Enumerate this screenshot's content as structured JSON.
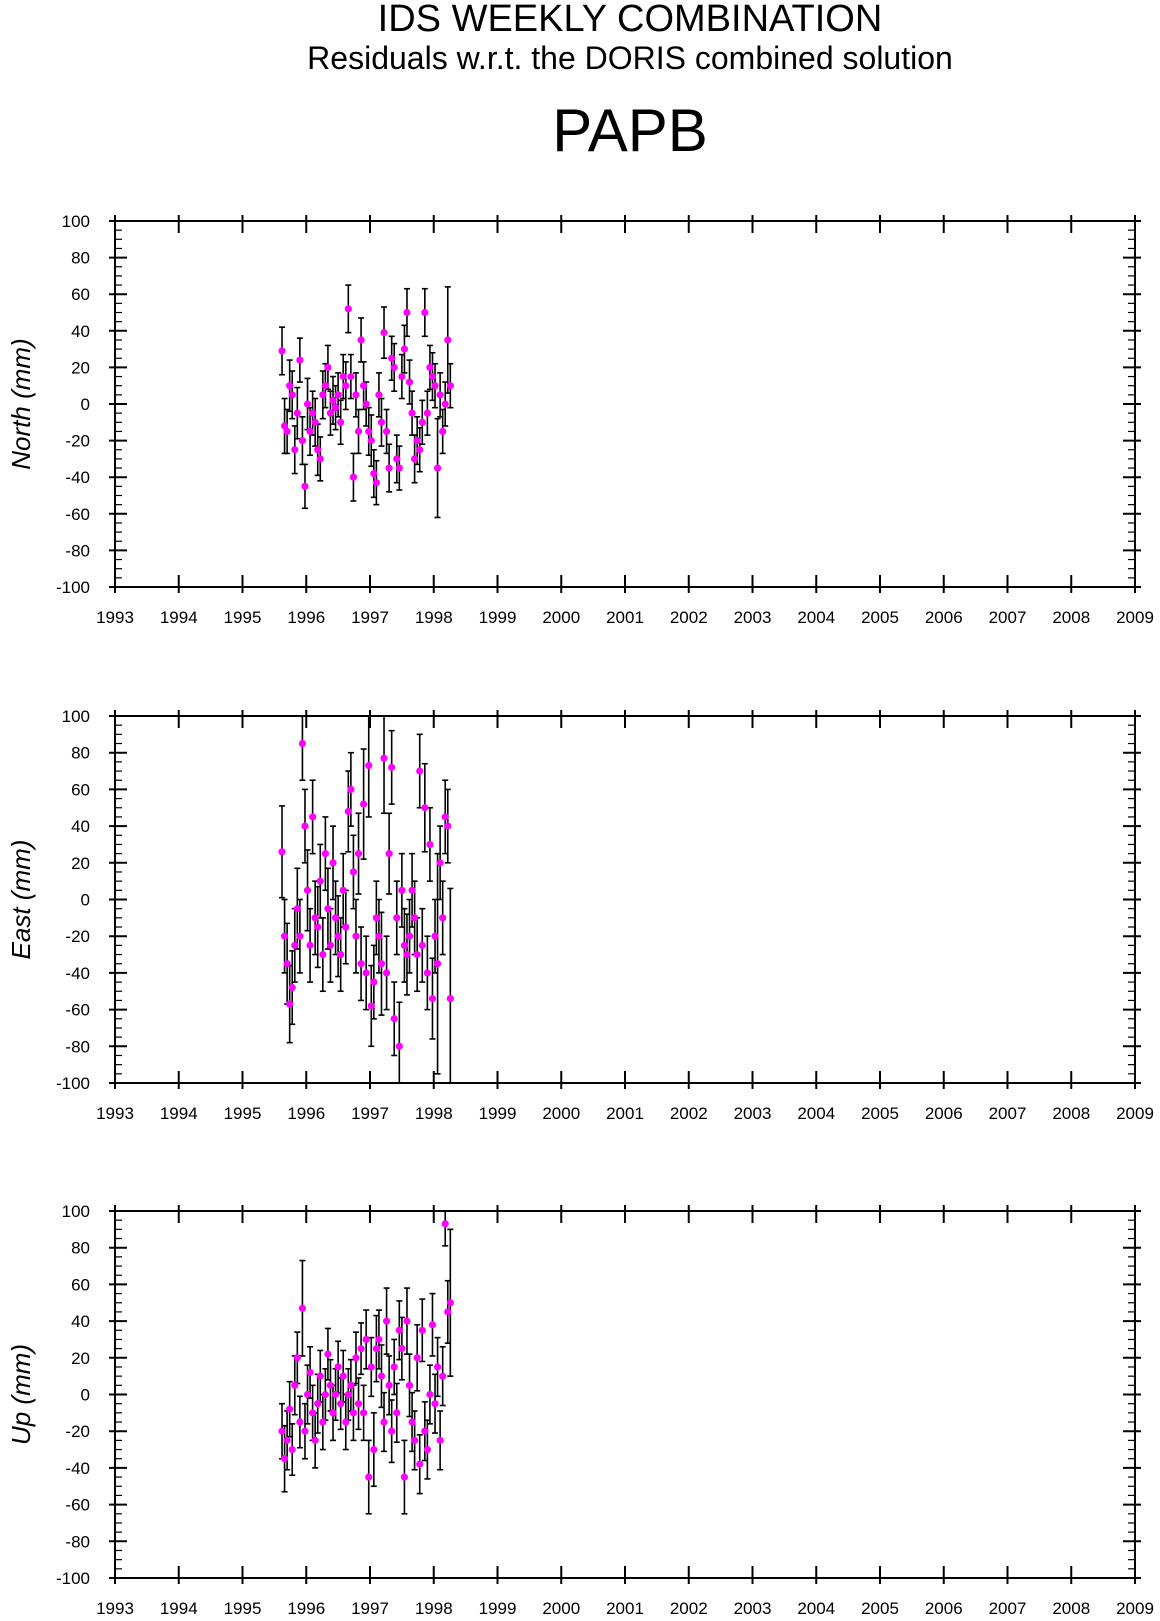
{
  "header": {
    "title": "IDS WEEKLY COMBINATION",
    "subtitle": "Residuals w.r.t. the DORIS combined solution",
    "station": "PAPB"
  },
  "colors": {
    "marker": "#ff00ff",
    "errorbar": "#000000",
    "axis": "#000000"
  },
  "chart_data": [
    {
      "type": "scatter",
      "ylabel": "North (mm)",
      "xlim": [
        1993,
        2009
      ],
      "ylim": [
        -100,
        100
      ],
      "x_ticks": [
        "1993",
        "1994",
        "1995",
        "1996",
        "1997",
        "1998",
        "1999",
        "2000",
        "2001",
        "2002",
        "2003",
        "2004",
        "2005",
        "2006",
        "2007",
        "2008",
        "2009"
      ],
      "y_ticks": [
        "100",
        "80",
        "60",
        "40",
        "20",
        "0",
        "-20",
        "-40",
        "-60",
        "-80",
        "-100"
      ],
      "series": [
        {
          "x": [
            1995.62,
            1995.66,
            1995.7,
            1995.74,
            1995.78,
            1995.82,
            1995.86,
            1995.9,
            1995.94,
            1995.98,
            1996.02,
            1996.06,
            1996.1,
            1996.14,
            1996.18,
            1996.22,
            1996.26,
            1996.3,
            1996.34,
            1996.38,
            1996.42,
            1996.46,
            1996.5,
            1996.54,
            1996.58,
            1996.62,
            1996.66,
            1996.7,
            1996.74,
            1996.78,
            1996.82,
            1996.86,
            1996.9,
            1996.94,
            1996.98,
            1997.02,
            1997.06,
            1997.1,
            1997.14,
            1997.18,
            1997.22,
            1997.26,
            1997.3,
            1997.34,
            1997.38,
            1997.42,
            1997.46,
            1997.5,
            1997.54,
            1997.58,
            1997.62,
            1997.66,
            1997.7,
            1997.74,
            1997.78,
            1997.82,
            1997.86,
            1997.9,
            1997.94,
            1997.98,
            1998.02,
            1998.06,
            1998.1,
            1998.14,
            1998.18,
            1998.22,
            1998.26
          ],
          "y": [
            29,
            -12,
            -15,
            10,
            5,
            -25,
            -5,
            24,
            -20,
            -45,
            0,
            -15,
            -5,
            -10,
            -25,
            -30,
            5,
            10,
            20,
            -5,
            2,
            -2,
            5,
            -10,
            15,
            10,
            52,
            15,
            -40,
            5,
            -15,
            35,
            10,
            0,
            -15,
            -20,
            -38,
            -43,
            5,
            -10,
            39,
            -15,
            -35,
            25,
            20,
            -30,
            -35,
            15,
            30,
            50,
            12,
            -5,
            -30,
            -20,
            -25,
            -10,
            50,
            -5,
            20,
            15,
            10,
            -35,
            5,
            -15,
            0,
            35,
            10
          ],
          "err": [
            13,
            15,
            12,
            14,
            13,
            13,
            14,
            12,
            13,
            12,
            14,
            13,
            12,
            13,
            14,
            12,
            13,
            12,
            12,
            12,
            13,
            12,
            12,
            12,
            12,
            13,
            13,
            12,
            13,
            12,
            12,
            12,
            13,
            12,
            13,
            14,
            13,
            12,
            12,
            13,
            14,
            12,
            13,
            12,
            13,
            13,
            12,
            12,
            13,
            13,
            12,
            12,
            13,
            13,
            12,
            12,
            13,
            12,
            12,
            13,
            12,
            27,
            12,
            12,
            12,
            29,
            12
          ]
        }
      ]
    },
    {
      "type": "scatter",
      "ylabel": "East (mm)",
      "xlim": [
        1993,
        2009
      ],
      "ylim": [
        -100,
        100
      ],
      "x_ticks": [
        "1993",
        "1994",
        "1995",
        "1996",
        "1997",
        "1998",
        "1999",
        "2000",
        "2001",
        "2002",
        "2003",
        "2004",
        "2005",
        "2006",
        "2007",
        "2008",
        "2009"
      ],
      "y_ticks": [
        "100",
        "80",
        "60",
        "40",
        "20",
        "0",
        "-20",
        "-40",
        "-60",
        "-80",
        "-100"
      ],
      "series": [
        {
          "x": [
            1995.62,
            1995.66,
            1995.7,
            1995.74,
            1995.78,
            1995.82,
            1995.86,
            1995.9,
            1995.94,
            1995.98,
            1996.02,
            1996.06,
            1996.1,
            1996.14,
            1996.18,
            1996.22,
            1996.26,
            1996.3,
            1996.34,
            1996.38,
            1996.42,
            1996.46,
            1996.5,
            1996.54,
            1996.58,
            1996.62,
            1996.66,
            1996.7,
            1996.74,
            1996.78,
            1996.82,
            1996.86,
            1996.9,
            1996.94,
            1996.98,
            1997.02,
            1997.06,
            1997.1,
            1997.14,
            1997.18,
            1997.22,
            1997.26,
            1997.3,
            1997.34,
            1997.38,
            1997.42,
            1997.46,
            1997.5,
            1997.54,
            1997.58,
            1997.62,
            1997.66,
            1997.7,
            1997.74,
            1997.78,
            1997.82,
            1997.86,
            1997.9,
            1997.94,
            1997.98,
            1998.02,
            1998.06,
            1998.1,
            1998.14,
            1998.18,
            1998.22,
            1998.26
          ],
          "y": [
            26,
            -20,
            -35,
            -57,
            -48,
            -25,
            -5,
            -20,
            85,
            40,
            5,
            -25,
            45,
            -10,
            -15,
            10,
            -30,
            25,
            -5,
            -25,
            20,
            -10,
            -20,
            -30,
            5,
            -15,
            48,
            60,
            15,
            -20,
            25,
            -35,
            52,
            -40,
            73,
            -58,
            -45,
            -10,
            -20,
            -35,
            77,
            -40,
            25,
            72,
            -65,
            -10,
            -80,
            5,
            -25,
            -30,
            -20,
            5,
            -10,
            -30,
            70,
            -25,
            50,
            -40,
            30,
            -54,
            -20,
            -35,
            20,
            -10,
            45,
            40,
            -54
          ],
          "err": [
            25,
            20,
            22,
            21,
            20,
            20,
            22,
            20,
            20,
            20,
            22,
            20,
            20,
            20,
            22,
            20,
            20,
            20,
            22,
            20,
            20,
            20,
            22,
            20,
            20,
            20,
            22,
            20,
            20,
            20,
            22,
            20,
            30,
            20,
            28,
            22,
            20,
            20,
            20,
            28,
            30,
            20,
            22,
            20,
            20,
            20,
            24,
            20,
            20,
            22,
            20,
            20,
            20,
            20,
            20,
            20,
            24,
            20,
            20,
            22,
            20,
            60,
            20,
            20,
            20,
            20,
            60
          ]
        }
      ]
    },
    {
      "type": "scatter",
      "ylabel": "Up (mm)",
      "xlim": [
        1993,
        2009
      ],
      "ylim": [
        -100,
        100
      ],
      "x_ticks": [
        "1993",
        "1994",
        "1995",
        "1996",
        "1997",
        "1998",
        "1999",
        "2000",
        "2001",
        "2002",
        "2003",
        "2004",
        "2005",
        "2006",
        "2007",
        "2008",
        "2009"
      ],
      "y_ticks": [
        "100",
        "80",
        "60",
        "40",
        "20",
        "0",
        "-20",
        "-40",
        "-60",
        "-80",
        "-100"
      ],
      "series": [
        {
          "x": [
            1995.62,
            1995.66,
            1995.7,
            1995.74,
            1995.78,
            1995.82,
            1995.86,
            1995.9,
            1995.94,
            1995.98,
            1996.02,
            1996.06,
            1996.1,
            1996.14,
            1996.18,
            1996.22,
            1996.26,
            1996.3,
            1996.34,
            1996.38,
            1996.42,
            1996.46,
            1996.5,
            1996.54,
            1996.58,
            1996.62,
            1996.66,
            1996.7,
            1996.74,
            1996.78,
            1996.82,
            1996.86,
            1996.9,
            1996.94,
            1996.98,
            1997.02,
            1997.06,
            1997.1,
            1997.14,
            1997.18,
            1997.22,
            1997.26,
            1997.3,
            1997.34,
            1997.38,
            1997.42,
            1997.46,
            1997.5,
            1997.54,
            1997.58,
            1997.62,
            1997.66,
            1997.7,
            1997.74,
            1997.78,
            1997.82,
            1997.86,
            1997.9,
            1997.94,
            1997.98,
            1998.02,
            1998.06,
            1998.1,
            1998.14,
            1998.18,
            1998.22,
            1998.26
          ],
          "y": [
            -20,
            -35,
            -25,
            -8,
            -30,
            5,
            20,
            -15,
            47,
            -20,
            0,
            12,
            -10,
            -25,
            -5,
            10,
            -15,
            0,
            22,
            5,
            -10,
            0,
            15,
            -5,
            10,
            -15,
            0,
            5,
            -10,
            20,
            -5,
            25,
            -10,
            30,
            -45,
            15,
            -30,
            25,
            30,
            10,
            -15,
            40,
            5,
            -20,
            15,
            -10,
            35,
            25,
            -45,
            40,
            5,
            -15,
            -25,
            20,
            -38,
            35,
            -20,
            -30,
            0,
            38,
            -5,
            15,
            -25,
            10,
            93,
            45,
            50
          ],
          "err": [
            15,
            18,
            16,
            15,
            14,
            16,
            14,
            14,
            26,
            15,
            16,
            14,
            15,
            15,
            16,
            14,
            15,
            14,
            14,
            14,
            15,
            14,
            14,
            14,
            14,
            15,
            14,
            14,
            15,
            14,
            14,
            14,
            15,
            16,
            20,
            16,
            20,
            18,
            16,
            17,
            16,
            18,
            16,
            17,
            15,
            16,
            16,
            17,
            20,
            18,
            17,
            16,
            16,
            18,
            16,
            17,
            16,
            16,
            16,
            17,
            16,
            16,
            16,
            16,
            12,
            17,
            40
          ]
        }
      ]
    }
  ]
}
